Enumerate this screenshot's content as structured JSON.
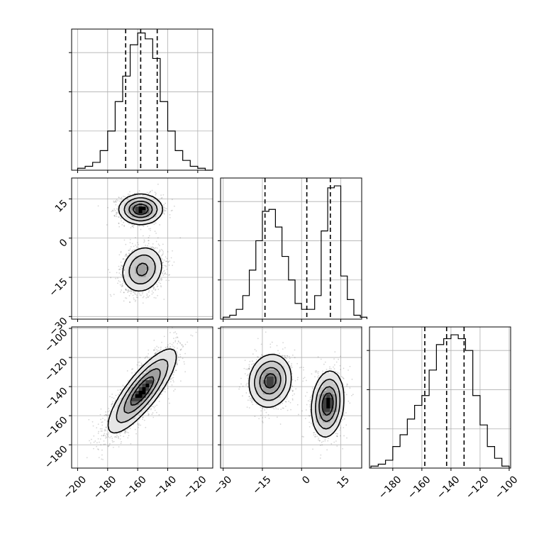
{
  "figure": {
    "type": "corner-plot",
    "gray_ramp": [
      "#ffffff",
      "#e6e6e6",
      "#c8c8c8",
      "#a0a0a0",
      "#707070",
      "#404040",
      "#000000"
    ]
  },
  "chart_data": [
    {
      "type": "histogram",
      "panel": "hist-x",
      "bin_edges": [
        -200,
        -195,
        -190,
        -185,
        -180,
        -175,
        -170,
        -165,
        -160,
        -155,
        -150,
        -145,
        -140,
        -135,
        -130,
        -125,
        -120,
        -115,
        -110
      ],
      "counts": [
        1,
        2,
        4,
        10,
        20,
        35,
        48,
        64,
        70,
        67,
        57,
        35,
        20,
        10,
        5,
        2,
        1,
        0
      ],
      "quantiles": [
        -168,
        -158,
        -147
      ],
      "xlim": [
        -204,
        -110
      ],
      "ylim": [
        0,
        72
      ],
      "grid": true,
      "ticks": [
        -200,
        -180,
        -160,
        -140,
        -120
      ],
      "tick_labels": [
        "−200",
        "−180",
        "−160",
        "−140",
        "−120"
      ]
    },
    {
      "type": "histogram",
      "panel": "hist-y",
      "bin_edges": [
        -30,
        -27.5,
        -25,
        -22.5,
        -20,
        -17.5,
        -15,
        -12.5,
        -10,
        -7.5,
        -5,
        -2.5,
        0,
        2.5,
        5,
        7.5,
        10,
        12.5,
        15,
        17.5,
        20,
        22.5,
        25
      ],
      "counts": [
        1,
        2,
        5,
        12,
        25,
        40,
        55,
        56,
        47,
        32,
        20,
        8,
        5,
        5,
        12,
        45,
        67,
        68,
        22,
        10,
        2,
        1
      ],
      "quantiles": [
        -14,
        2,
        11
      ],
      "xlim": [
        -31,
        23
      ],
      "ylim": [
        0,
        72
      ],
      "grid": true,
      "ticks": [
        -30,
        -15,
        0,
        15
      ],
      "tick_labels": [
        "−30",
        "−15",
        "0",
        "15"
      ]
    },
    {
      "type": "histogram",
      "panel": "hist-z",
      "bin_edges": [
        -195,
        -190,
        -185,
        -180,
        -175,
        -170,
        -165,
        -160,
        -155,
        -150,
        -145,
        -140,
        -135,
        -130,
        -125,
        -120,
        -115,
        -110,
        -105,
        -100
      ],
      "counts": [
        1,
        2,
        4,
        11,
        17,
        25,
        32,
        37,
        50,
        63,
        66,
        68,
        66,
        60,
        37,
        22,
        11,
        5,
        1
      ],
      "quantiles": [
        -158,
        -143,
        -131
      ],
      "xlim": [
        -196,
        -99
      ],
      "ylim": [
        0,
        72
      ],
      "grid": true,
      "ticks": [
        -180,
        -160,
        -140,
        -120,
        -100
      ],
      "tick_labels": [
        "−180",
        "−160",
        "−140",
        "−120",
        "−100"
      ]
    },
    {
      "type": "heatmap",
      "panel": "xy",
      "x_range": [
        -204,
        -110
      ],
      "y_range": [
        -31,
        23
      ],
      "modes": [
        {
          "x": -158,
          "y": 11,
          "sx": 7,
          "sy": 2.8,
          "rho": 0,
          "w": 0.5
        },
        {
          "x": -157,
          "y": -12,
          "sx": 7,
          "sy": 4.5,
          "rho": 0.15,
          "w": 0.5
        }
      ],
      "density_contours": true,
      "scatter": true,
      "grid": true,
      "y_ticks": [
        15,
        0,
        -15,
        -30
      ],
      "y_tick_labels": [
        "15",
        "0",
        "−15",
        "−30"
      ]
    },
    {
      "type": "heatmap",
      "panel": "xz",
      "x_range": [
        -204,
        -110
      ],
      "y_range": [
        -196,
        -99
      ],
      "modes": [
        {
          "x": -157,
          "y": -143,
          "sx": 11,
          "sy": 14,
          "rho": 0.82,
          "w": 1
        }
      ],
      "density_contours": true,
      "scatter": true,
      "grid": true,
      "y_ticks": [
        -100,
        -120,
        -140,
        -160,
        -180
      ],
      "y_tick_labels": [
        "−100",
        "−120",
        "−140",
        "−160",
        "−180"
      ]
    },
    {
      "type": "heatmap",
      "panel": "yz",
      "x_range": [
        -31,
        23
      ],
      "y_range": [
        -196,
        -99
      ],
      "modes": [
        {
          "x": -12,
          "y": -136,
          "sx": 4,
          "sy": 9,
          "rho": 0.1,
          "w": 0.5
        },
        {
          "x": 10,
          "y": -152,
          "sx": 3,
          "sy": 11,
          "rho": 0.15,
          "w": 0.5
        }
      ],
      "density_contours": true,
      "scatter": true,
      "grid": true
    }
  ]
}
